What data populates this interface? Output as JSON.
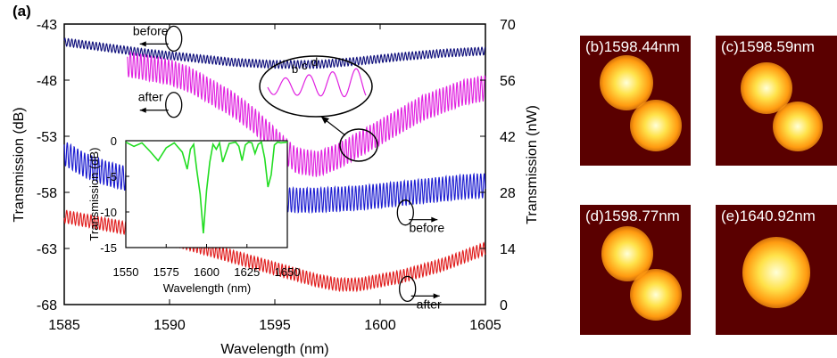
{
  "panel_label": "(a)",
  "chart_data": [
    {
      "type": "line",
      "xlabel": "Wavelength (nm)",
      "ylabel": "Transmission (dB)",
      "y2label": "Transmission (nW)",
      "xlim": [
        1585,
        1605
      ],
      "ylim": [
        -68,
        -43
      ],
      "y2lim": [
        0,
        70
      ],
      "xticks": [
        1585,
        1590,
        1595,
        1600,
        1605
      ],
      "yticks": [
        -43,
        -48,
        -53,
        -58,
        -63,
        -68
      ],
      "y2ticks": [
        70,
        56,
        42,
        28,
        14,
        0
      ],
      "grid": false,
      "series": [
        {
          "color": "#0d0d7a",
          "axis": "left",
          "ripple": 0.35,
          "x": [
            1585,
            1587,
            1589,
            1591,
            1593,
            1595,
            1597,
            1599,
            1601,
            1603,
            1605
          ],
          "y": [
            -44.6,
            -45.1,
            -45.6,
            -46.0,
            -46.4,
            -46.6,
            -46.6,
            -46.3,
            -45.9,
            -45.6,
            -45.4
          ]
        },
        {
          "color": "#e020e0",
          "axis": "right",
          "ripple": 3.2,
          "x": [
            1588,
            1589,
            1590,
            1591,
            1592,
            1593,
            1594,
            1595,
            1596,
            1597,
            1598,
            1599,
            1600,
            1601,
            1602,
            1603,
            1604,
            1605
          ],
          "y": [
            60,
            59,
            58,
            56,
            53,
            50,
            46,
            41,
            36,
            35,
            37,
            40,
            43,
            46,
            49,
            51,
            53,
            54
          ]
        },
        {
          "color": "#1a1ad0",
          "axis": "left",
          "ripple": 1.1,
          "x": [
            1585,
            1586,
            1587,
            1588,
            1589,
            1590,
            1591,
            1592,
            1593,
            1594,
            1595,
            1596,
            1597,
            1598,
            1599,
            1600,
            1601,
            1602,
            1603,
            1604,
            1605
          ],
          "y": [
            -54.5,
            -55.6,
            -56.3,
            -56.8,
            -57.2,
            -57.5,
            -57.8,
            -58.1,
            -58.3,
            -58.5,
            -58.6,
            -58.7,
            -58.7,
            -58.6,
            -58.5,
            -58.3,
            -58.1,
            -57.9,
            -57.7,
            -57.5,
            -57.4
          ]
        },
        {
          "color": "#e01a1a",
          "axis": "right",
          "ripple": 1.6,
          "x": [
            1585,
            1586,
            1587,
            1588,
            1589,
            1590,
            1591,
            1592,
            1593,
            1594,
            1595,
            1596,
            1597,
            1598,
            1599,
            1600,
            1601,
            1602,
            1603,
            1604,
            1605
          ],
          "y": [
            22,
            21,
            20,
            19,
            18,
            16.5,
            15,
            13.5,
            12,
            10.5,
            9,
            7.5,
            6,
            5,
            5,
            6,
            7,
            8.5,
            10,
            12,
            14
          ]
        }
      ],
      "annotations": [
        {
          "text": "before",
          "arrow": "left",
          "x": 1590.2,
          "y": -44.3
        },
        {
          "text": "after",
          "arrow": "left",
          "x": 1590.2,
          "y": -50.2
        },
        {
          "text": "before",
          "arrow": "right",
          "x": 1601.2,
          "y": -59.8
        },
        {
          "text": "after",
          "arrow": "right",
          "x": 1601.3,
          "y": -66.6
        }
      ],
      "inset_markers": [
        "b",
        "c",
        "d"
      ]
    },
    {
      "type": "line",
      "xlabel": "Wavelength (nm)",
      "ylabel": "Transmission (dB)",
      "xlim": [
        1550,
        1650
      ],
      "ylim": [
        -15,
        0
      ],
      "xticks": [
        1550,
        1575,
        1600,
        1625,
        1650
      ],
      "yticks": [
        0,
        -5,
        -10,
        -15
      ],
      "series": [
        {
          "color": "#22dd22",
          "x": [
            1550,
            1555,
            1560,
            1565,
            1570,
            1575,
            1580,
            1585,
            1588,
            1590,
            1592,
            1594,
            1596,
            1598,
            1600,
            1602,
            1604,
            1606,
            1608,
            1610,
            1614,
            1618,
            1620,
            1622,
            1624,
            1626,
            1628,
            1630,
            1632,
            1634,
            1636,
            1638,
            1640,
            1642,
            1644,
            1646,
            1650
          ],
          "y": [
            -0.2,
            -0.8,
            -0.3,
            -1.5,
            -2.8,
            -1.0,
            -0.3,
            -1.6,
            -4.0,
            -1.2,
            -0.5,
            -4.2,
            -7.5,
            -13.0,
            -7.0,
            -3.0,
            -0.5,
            -1.2,
            -0.3,
            -3.0,
            -0.4,
            -0.2,
            -0.8,
            -2.8,
            -0.6,
            -0.2,
            -0.3,
            -1.8,
            -0.5,
            -0.2,
            -2.5,
            -6.5,
            -4.8,
            -0.6,
            -0.2,
            -0.3,
            -0.2
          ]
        }
      ]
    }
  ],
  "mode_images": [
    {
      "label": "(b)1598.44nm",
      "lobes": 2
    },
    {
      "label": "(c)1598.59nm",
      "lobes": 2
    },
    {
      "label": "(d)1598.77nm",
      "lobes": 2
    },
    {
      "label": "(e)1640.92nm",
      "lobes": 1
    }
  ]
}
